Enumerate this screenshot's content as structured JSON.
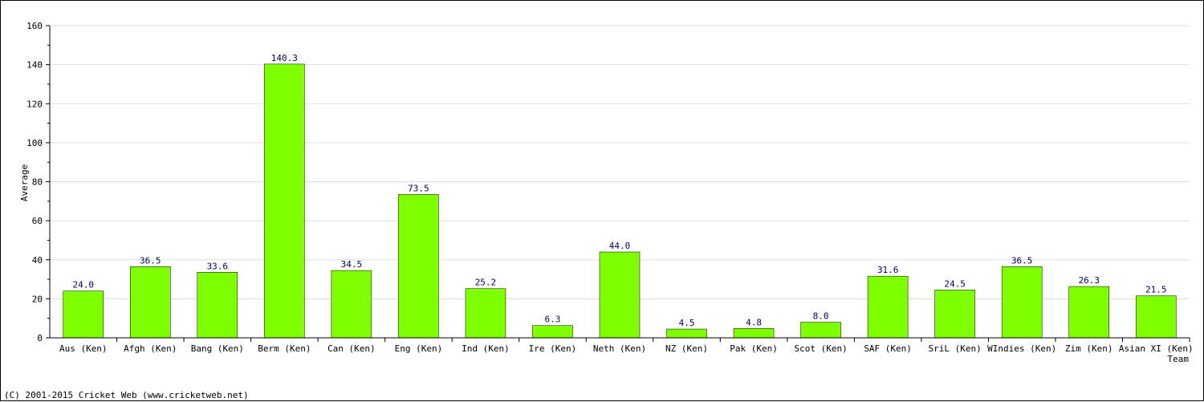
{
  "chart_data": {
    "type": "bar",
    "title": "",
    "xlabel": "Team",
    "ylabel": "Average",
    "ylim": [
      0,
      160
    ],
    "yticks": [
      0,
      20,
      40,
      60,
      80,
      100,
      120,
      140,
      160
    ],
    "grid": true,
    "bar_color": "#80ff00",
    "categories": [
      "Aus (Ken)",
      "Afgh (Ken)",
      "Bang (Ken)",
      "Berm (Ken)",
      "Can (Ken)",
      "Eng (Ken)",
      "Ind (Ken)",
      "Ire (Ken)",
      "Neth (Ken)",
      "NZ (Ken)",
      "Pak (Ken)",
      "Scot (Ken)",
      "SAF (Ken)",
      "SriL (Ken)",
      "WIndies (Ken)",
      "Zim (Ken)",
      "Asian XI (Ken)"
    ],
    "values": [
      24.0,
      36.5,
      33.6,
      140.3,
      34.5,
      73.5,
      25.2,
      6.3,
      44.0,
      4.5,
      4.8,
      8.0,
      31.6,
      24.5,
      36.5,
      26.3,
      21.5
    ],
    "value_labels": [
      "24.0",
      "36.5",
      "33.6",
      "140.3",
      "34.5",
      "73.5",
      "25.2",
      "6.3",
      "44.0",
      "4.5",
      "4.8",
      "8.0",
      "31.6",
      "24.5",
      "36.5",
      "26.3",
      "21.5"
    ]
  },
  "footer": {
    "copyright": "(C) 2001-2015 Cricket Web (www.cricketweb.net)"
  }
}
